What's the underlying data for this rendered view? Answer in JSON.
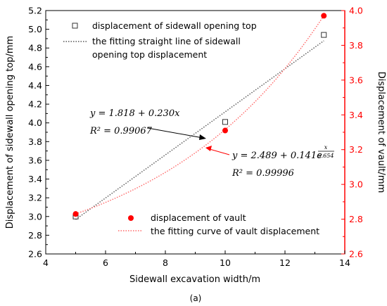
{
  "chart_data": {
    "type": "scatter",
    "caption": "(a)",
    "xlabel": "Sidewall excavation width/m",
    "ylabel_left": "Displacement of sidewall opening top/mm",
    "ylabel_right": "Displacement of vault/mm",
    "xlim": [
      4,
      14
    ],
    "ylim_left": [
      2.6,
      5.2
    ],
    "ylim_right": [
      2.6,
      4.0
    ],
    "x_ticks": [
      "4",
      "6",
      "8",
      "10",
      "12",
      "14"
    ],
    "y_left_ticks": [
      "2.6",
      "2.8",
      "3.0",
      "3.2",
      "3.4",
      "3.6",
      "3.8",
      "4.0",
      "4.2",
      "4.4",
      "4.6",
      "4.8",
      "5.0",
      "5.2"
    ],
    "y_right_ticks": [
      "2.6",
      "2.8",
      "3.0",
      "3.2",
      "3.4",
      "3.6",
      "3.8",
      "4.0"
    ],
    "colors": {
      "sidewall": "#000000",
      "vault": "#ff0000",
      "left_axis": "#000000",
      "right_axis": "#ff0000"
    },
    "series": [
      {
        "name": "displacement of sidewall opening top",
        "axis": "left",
        "marker": "hollow-square",
        "x": [
          5,
          10,
          13.3
        ],
        "y": [
          3.0,
          4.01,
          4.94
        ]
      },
      {
        "name": "the fitting straight line of sidewall opening top displacement",
        "axis": "left",
        "style": "dotted-line",
        "equation": {
          "a": 1.818,
          "b": 0.23,
          "xmin": 5,
          "xmax": 13.3
        }
      },
      {
        "name": "displacement of vault",
        "axis": "right",
        "marker": "filled-circle",
        "x": [
          5,
          10,
          13.3
        ],
        "y": [
          2.83,
          3.31,
          3.97
        ]
      },
      {
        "name": "the fitting curve of vault displacement",
        "axis": "right",
        "style": "dotted-curve",
        "equation": {
          "a": 2.489,
          "b": 0.141,
          "c": 5.654,
          "xmin": 5,
          "xmax": 13.3
        }
      }
    ],
    "legend_top": [
      "displacement of sidewall opening top",
      "the fitting straight line of sidewall",
      "opening top displacement"
    ],
    "legend_bottom": [
      "displacement of vault",
      "the fitting curve of vault displacement"
    ],
    "annotations": {
      "linear_eq": "y = 1.818 + 0.230x",
      "linear_r2": "R² = 0.99067",
      "exp_eq_prefix": "y = 2.489 + 0.141e",
      "exp_exponent_num": "x",
      "exp_exponent_den": "5.654",
      "exp_r2": "R² = 0.99996"
    }
  }
}
